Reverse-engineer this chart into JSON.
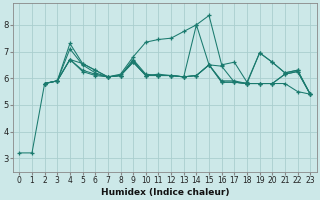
{
  "xlabel": "Humidex (Indice chaleur)",
  "bg_color": "#cce8e8",
  "grid_color": "#aacece",
  "line_color": "#1a7a6e",
  "xlim": [
    -0.5,
    23.5
  ],
  "ylim": [
    2.5,
    8.8
  ],
  "xticks": [
    0,
    1,
    2,
    3,
    4,
    5,
    6,
    7,
    8,
    9,
    10,
    11,
    12,
    13,
    14,
    15,
    16,
    17,
    18,
    19,
    20,
    21,
    22,
    23
  ],
  "yticks": [
    3,
    4,
    5,
    6,
    7,
    8
  ],
  "line1_x": [
    0,
    1,
    2,
    3,
    4,
    5,
    6,
    7,
    8,
    9,
    10,
    11,
    12,
    13,
    14,
    15,
    16,
    17,
    18,
    19,
    20,
    21,
    22,
    23
  ],
  "line1_y": [
    3.2,
    3.2,
    5.8,
    5.9,
    6.7,
    6.55,
    6.3,
    6.05,
    6.1,
    6.7,
    6.15,
    6.1,
    6.1,
    6.05,
    6.1,
    6.5,
    5.9,
    5.9,
    5.8,
    5.8,
    5.8,
    5.8,
    5.5,
    5.4
  ],
  "line2_x": [
    2,
    3,
    4,
    5,
    6,
    7,
    8,
    9,
    10,
    11,
    12,
    13,
    14,
    15,
    16,
    17,
    18,
    19,
    20,
    21,
    22,
    23
  ],
  "line2_y": [
    5.8,
    5.9,
    7.3,
    6.55,
    6.3,
    6.05,
    6.15,
    6.8,
    7.35,
    7.45,
    7.5,
    7.75,
    8.0,
    8.35,
    6.5,
    6.6,
    5.85,
    6.95,
    6.6,
    6.2,
    6.3,
    5.4
  ],
  "line3_x": [
    2,
    3,
    4,
    5,
    6,
    7,
    8,
    9,
    10,
    11,
    12,
    13,
    14,
    15,
    16,
    17,
    18,
    19,
    20,
    21,
    22,
    23
  ],
  "line3_y": [
    5.8,
    5.9,
    7.1,
    6.5,
    6.2,
    6.05,
    6.1,
    6.65,
    6.1,
    6.15,
    6.1,
    6.05,
    6.1,
    6.5,
    6.45,
    5.85,
    5.8,
    6.95,
    6.6,
    6.2,
    6.3,
    5.4
  ],
  "line4_x": [
    2,
    3,
    4,
    5,
    6,
    7,
    8,
    9,
    10,
    11,
    12,
    13,
    14,
    15,
    16,
    17,
    18,
    19,
    20,
    21,
    22,
    23
  ],
  "line4_y": [
    5.8,
    5.9,
    6.7,
    6.3,
    6.15,
    6.05,
    6.1,
    6.6,
    6.1,
    6.1,
    6.1,
    6.05,
    6.1,
    6.5,
    5.85,
    5.85,
    5.8,
    5.8,
    5.8,
    6.15,
    6.25,
    5.4
  ],
  "line5_x": [
    2,
    3,
    4,
    5,
    6,
    7,
    8,
    9,
    10,
    11,
    12,
    13,
    14,
    15,
    16,
    17,
    18,
    19,
    20,
    21,
    22,
    23
  ],
  "line5_y": [
    5.8,
    5.9,
    6.7,
    6.25,
    6.1,
    6.05,
    6.1,
    6.6,
    6.1,
    6.1,
    6.1,
    6.05,
    8.0,
    6.5,
    5.85,
    5.85,
    5.8,
    5.8,
    5.8,
    6.15,
    6.25,
    5.4
  ]
}
